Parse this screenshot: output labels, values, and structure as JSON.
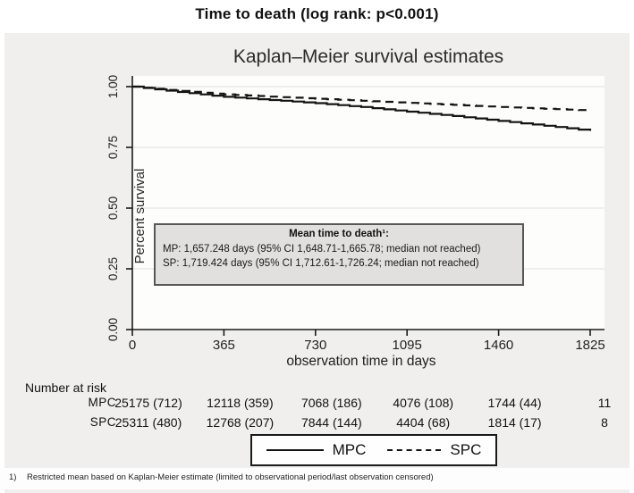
{
  "page": {
    "title": "Time to death (log rank: p<0.001)"
  },
  "chart": {
    "title": "Kaplan–Meier survival estimates",
    "xlabel": "observation time in days",
    "ylabel": "Percent survival"
  },
  "chart_data": {
    "type": "line",
    "title": "Kaplan–Meier survival estimates",
    "xlabel": "observation time in days",
    "ylabel": "Percent survival",
    "xlim": [
      0,
      1825
    ],
    "ylim": [
      0,
      1
    ],
    "xticks": [
      0,
      365,
      730,
      1095,
      1460,
      1825
    ],
    "yticks": [
      0.0,
      0.25,
      0.5,
      0.75,
      1.0
    ],
    "ytick_labels": [
      "0.00",
      "0.25",
      "0.50",
      "0.75",
      "1.00"
    ],
    "grid": "horizontal",
    "legend_position": "bottom",
    "line_color": "#141414",
    "series": [
      {
        "name": "MPC",
        "style": "solid",
        "x": [
          0,
          182,
          365,
          548,
          730,
          912,
          1095,
          1278,
          1460,
          1642,
          1825
        ],
        "y": [
          1.0,
          0.978,
          0.958,
          0.945,
          0.932,
          0.916,
          0.897,
          0.879,
          0.859,
          0.839,
          0.818
        ]
      },
      {
        "name": "SPC",
        "style": "dashed",
        "x": [
          0,
          182,
          365,
          548,
          730,
          912,
          1095,
          1278,
          1460,
          1642,
          1825
        ],
        "y": [
          1.0,
          0.982,
          0.968,
          0.959,
          0.95,
          0.942,
          0.933,
          0.925,
          0.916,
          0.909,
          0.902
        ]
      }
    ]
  },
  "annotation": {
    "title": "Mean time to death¹:",
    "line1": "MP: 1,657.248 days (95% CI 1,648.71-1,665.78; median not reached)",
    "line2": "SP: 1,719.424 days (95% CI 1,712.61-1,726.24; median not reached)"
  },
  "risk_table": {
    "header": "Number at risk",
    "rows": [
      {
        "label": "MPC",
        "values": [
          "25175 (712)",
          "12118 (359)",
          "7068 (186)",
          "4076 (108)",
          "1744 (44)",
          "11"
        ]
      },
      {
        "label": "SPC",
        "values": [
          "25311 (480)",
          "12768 (207)",
          "7844 (144)",
          "4404 (68)",
          "1814 (17)",
          "8"
        ]
      }
    ]
  },
  "legend": {
    "items": [
      {
        "label": "MPC",
        "style": "solid"
      },
      {
        "label": "SPC",
        "style": "dashed"
      }
    ]
  },
  "footnote": {
    "marker": "1)",
    "text": "Restricted mean based on Kaplan-Meier estimate (limited to observational period/last observation censored)"
  }
}
